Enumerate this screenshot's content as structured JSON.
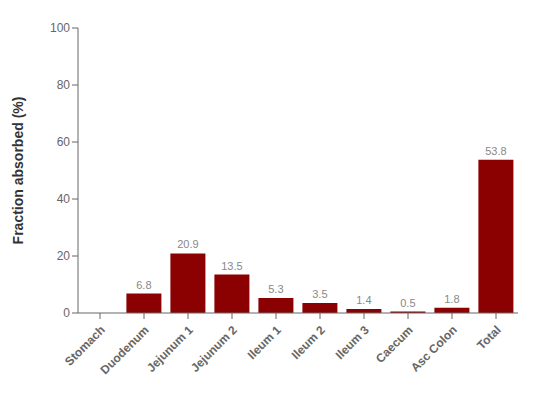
{
  "chart_data": {
    "type": "bar",
    "categories": [
      "Stomach",
      "Duodenum",
      "Jejunum 1",
      "Jejunum 2",
      "Ileum 1",
      "Ileum 2",
      "Ileum 3",
      "Caecum",
      "Asc Colon",
      "Total"
    ],
    "values": [
      0,
      6.8,
      20.9,
      13.5,
      5.3,
      3.5,
      1.4,
      0.5,
      1.8,
      53.8
    ],
    "color": "#8B0000",
    "ylabel": "Fraction absorbed (%)",
    "ylim": [
      0,
      100
    ],
    "yticks": [
      0,
      20,
      40,
      60,
      80,
      100
    ],
    "grid": false,
    "data_labels": true
  }
}
